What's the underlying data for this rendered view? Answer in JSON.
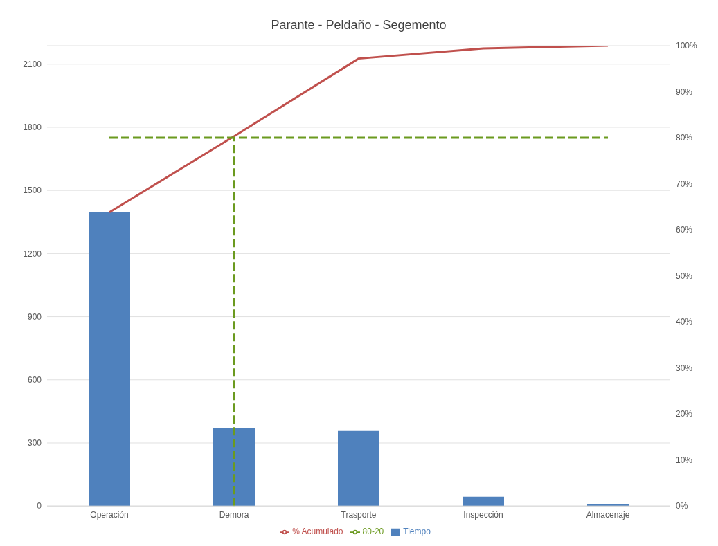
{
  "chart_data": {
    "type": "bar",
    "title": "Parante - Peldaño - Segemento",
    "categories": [
      "Operación",
      "Demora",
      "Trasporte",
      "Inspección",
      "Almacenaje"
    ],
    "series": [
      {
        "name": "Tiempo",
        "color": "#4f81bd",
        "values": [
          1395,
          371,
          357,
          44,
          10
        ]
      },
      {
        "name": "% Acumulado",
        "type": "line",
        "axis": "y2",
        "color": "#c0504d",
        "values": [
          63.8,
          80.3,
          97.2,
          99.4,
          100
        ]
      },
      {
        "name": "80-20",
        "type": "line",
        "axis": "y2",
        "color": "#6b9a1f",
        "line_style": "dashed",
        "values": [
          80,
          80,
          80,
          80,
          80
        ]
      }
    ],
    "ylim": [
      0,
      2188
    ],
    "yticks": [
      0,
      300,
      600,
      900,
      1200,
      1500,
      1800,
      2100
    ],
    "y2lim": [
      0,
      100
    ],
    "y2ticks": [
      {
        "value": 0,
        "label": "0%"
      },
      {
        "value": 10,
        "label": "10%"
      },
      {
        "value": 20,
        "label": "20%"
      },
      {
        "value": 30,
        "label": "30%"
      },
      {
        "value": 40,
        "label": "40%"
      },
      {
        "value": 50,
        "label": "50%"
      },
      {
        "value": 60,
        "label": "60%"
      },
      {
        "value": 70,
        "label": "70%"
      },
      {
        "value": 80,
        "label": "80%"
      },
      {
        "value": 90,
        "label": "90%"
      },
      {
        "value": 100,
        "label": "100%"
      }
    ],
    "ref_lines": [
      {
        "axis": "x",
        "value": "Demora",
        "label": null,
        "color": "#6b9a1f",
        "line_style": "dashed"
      }
    ],
    "grid": "y",
    "legend": "bottom",
    "marker": "none"
  }
}
